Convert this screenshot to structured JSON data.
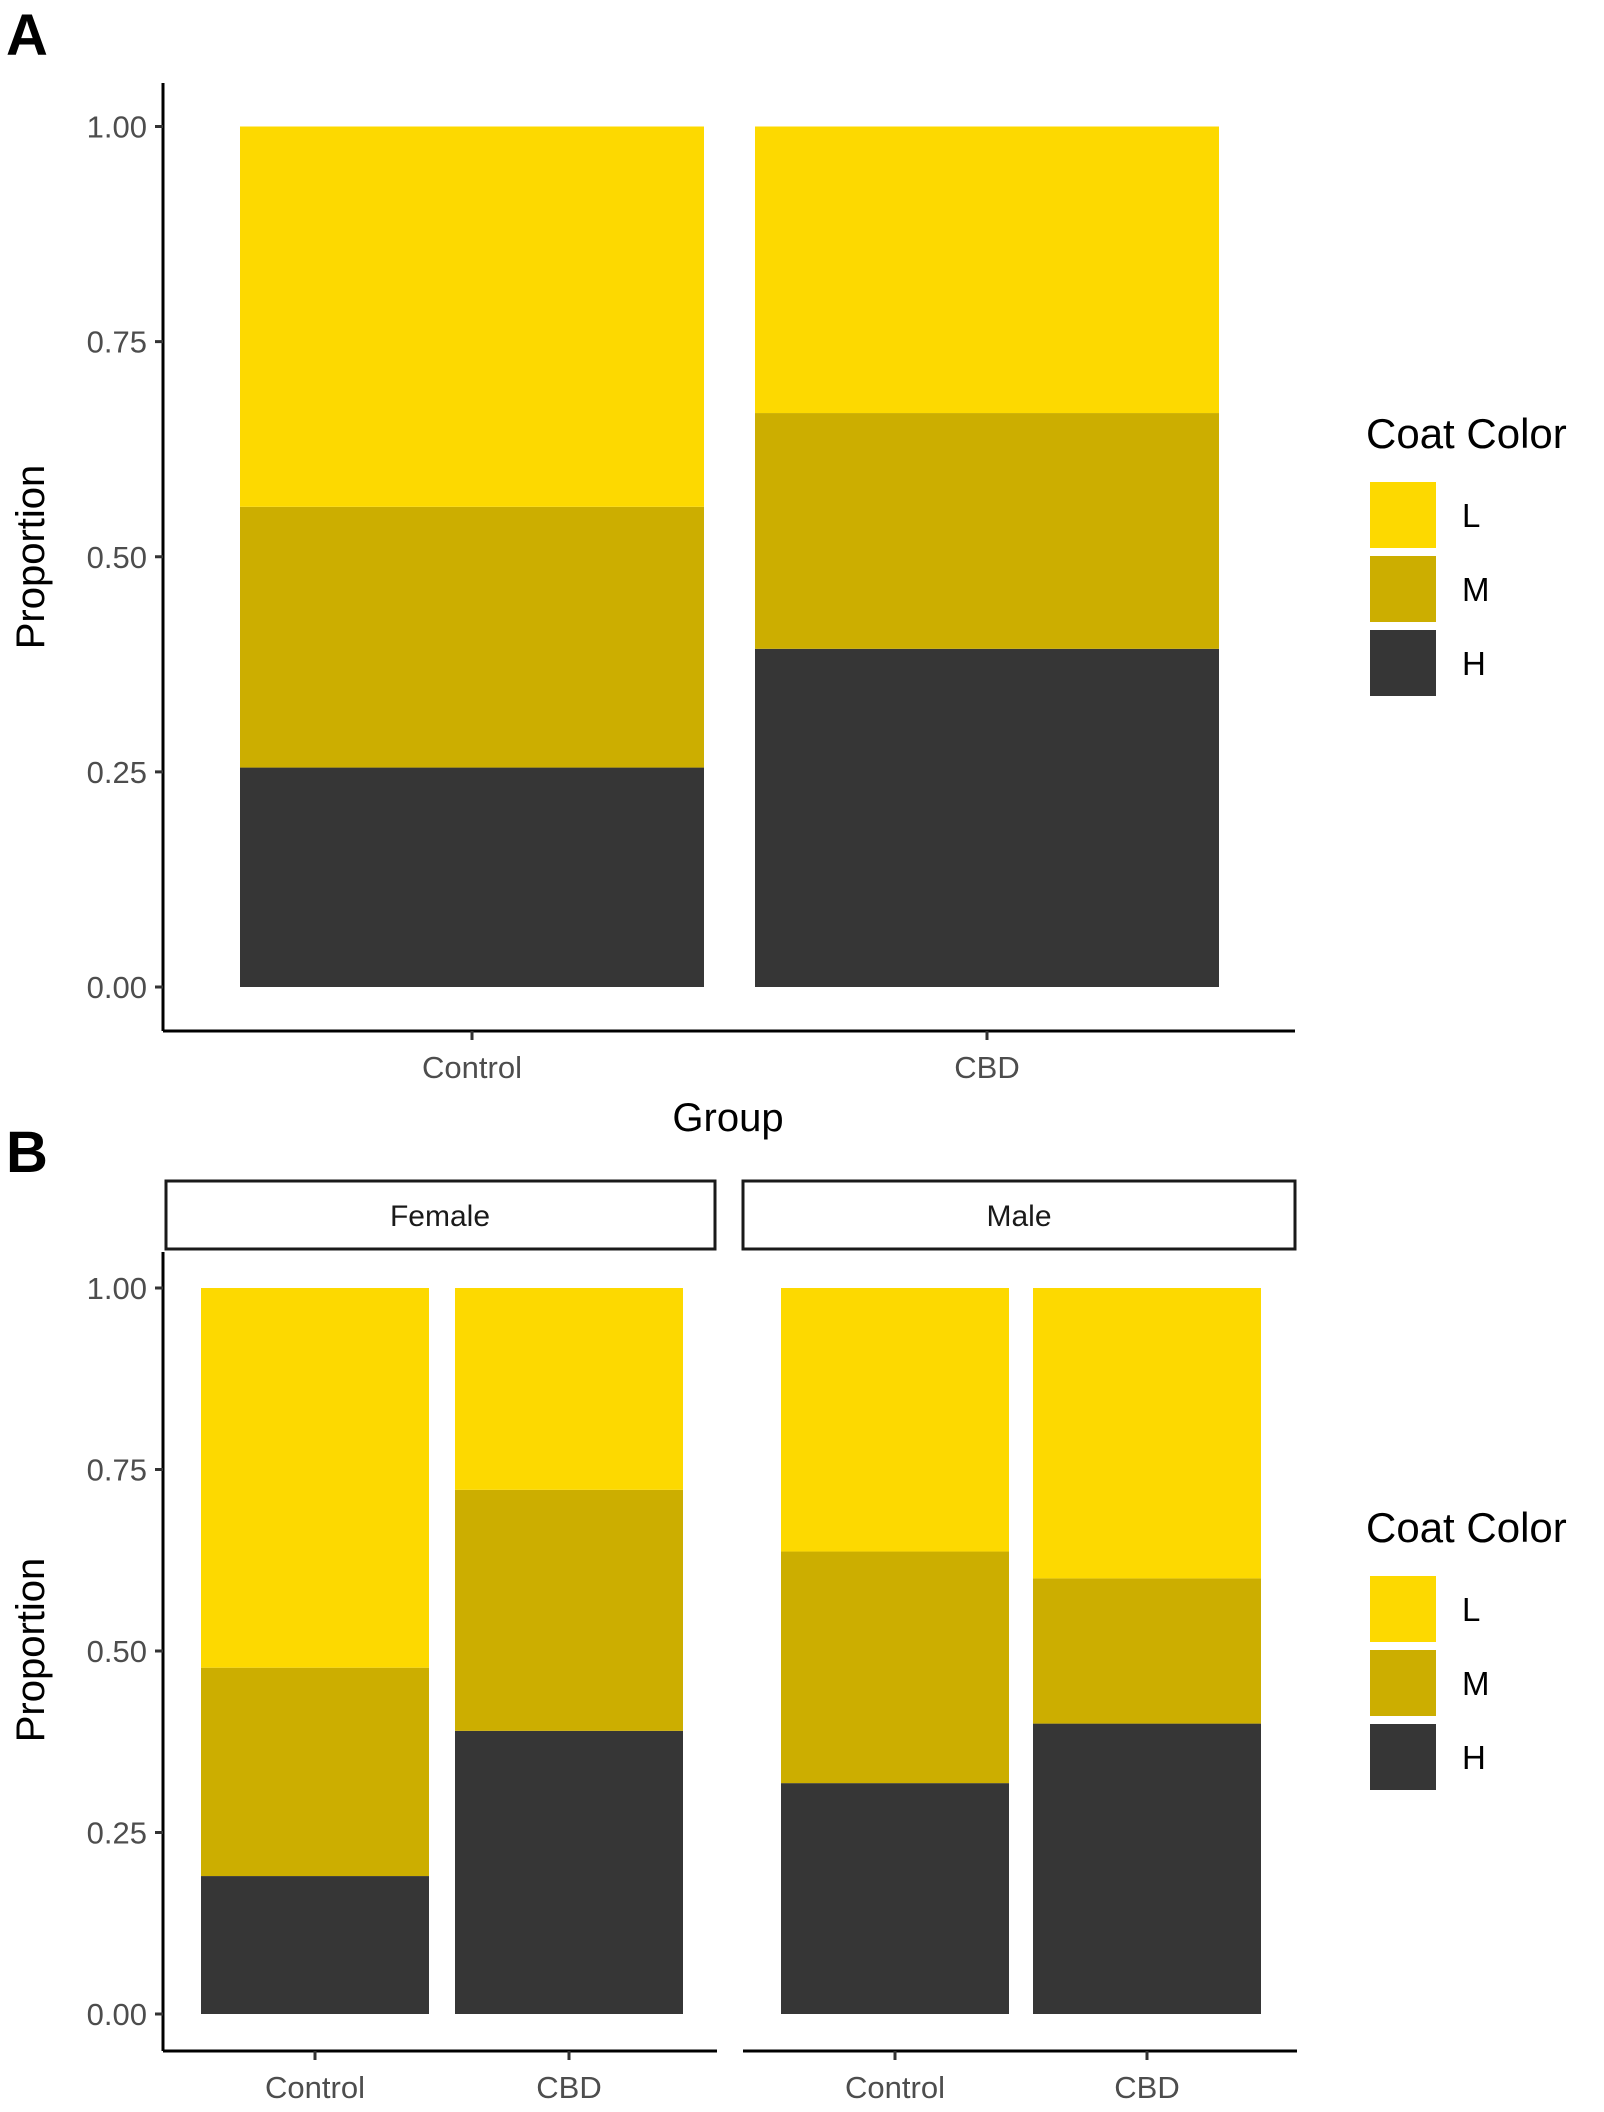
{
  "chart_data": [
    {
      "panel": "A",
      "type": "bar",
      "stacked": "fill",
      "categories": [
        "Control",
        "CBD"
      ],
      "series": [
        {
          "name": "H",
          "color": "#363636",
          "values": [
            0.255,
            0.393
          ]
        },
        {
          "name": "M",
          "color": "#CCAE00",
          "values": [
            0.303,
            0.274
          ]
        },
        {
          "name": "L",
          "color": "#FDD900",
          "values": [
            0.442,
            0.333
          ]
        }
      ],
      "xlabel": "Group",
      "ylabel": "Proportion",
      "ylim": [
        0,
        1
      ],
      "yticks": [
        "0.00",
        "0.25",
        "0.50",
        "0.75",
        "1.00"
      ],
      "grid": false,
      "legend": {
        "title": "Coat Color",
        "position": "right",
        "entries": [
          "L",
          "M",
          "H"
        ]
      }
    },
    {
      "panel": "B",
      "type": "bar",
      "stacked": "fill",
      "facets": [
        {
          "strip": "Female",
          "categories": [
            "Control",
            "CBD"
          ],
          "series": [
            {
              "name": "H",
              "color": "#363636",
              "values": [
                0.19,
                0.39
              ]
            },
            {
              "name": "M",
              "color": "#CCAE00",
              "values": [
                0.287,
                0.332
              ]
            },
            {
              "name": "L",
              "color": "#FDD900",
              "values": [
                0.523,
                0.278
              ]
            }
          ]
        },
        {
          "strip": "Male",
          "categories": [
            "Control",
            "CBD"
          ],
          "series": [
            {
              "name": "H",
              "color": "#363636",
              "values": [
                0.318,
                0.4
              ]
            },
            {
              "name": "M",
              "color": "#CCAE00",
              "values": [
                0.319,
                0.2
              ]
            },
            {
              "name": "L",
              "color": "#FDD900",
              "values": [
                0.363,
                0.4
              ]
            }
          ]
        }
      ],
      "xlabel": "",
      "ylabel": "Proportion",
      "ylim": [
        0,
        1
      ],
      "yticks": [
        "0.00",
        "0.25",
        "0.50",
        "0.75",
        "1.00"
      ],
      "grid": false,
      "legend": {
        "title": "Coat Color",
        "position": "right",
        "entries": [
          "L",
          "M",
          "H"
        ]
      }
    }
  ],
  "figure": {
    "panel_labels": [
      "A",
      "B"
    ]
  }
}
